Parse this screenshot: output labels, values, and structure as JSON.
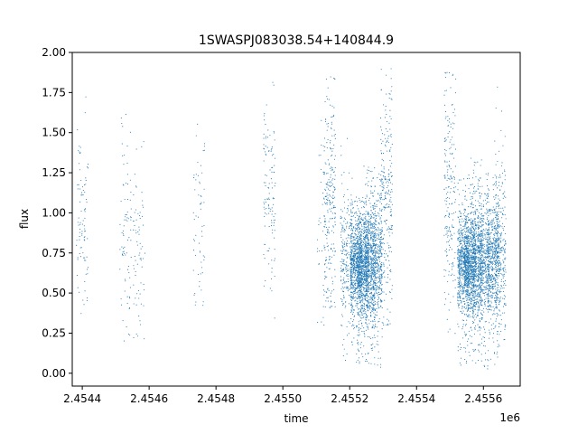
{
  "chart_data": {
    "type": "scatter",
    "title": "1SWASPJ083038.54+140844.9",
    "xlabel": "time",
    "ylabel": "flux",
    "x_offset_label": "1e6",
    "xlim": [
      2.45437,
      2.45571
    ],
    "ylim": [
      -0.08,
      2.0
    ],
    "xticks": [
      2.4544,
      2.4546,
      2.4548,
      2.455,
      2.4552,
      2.4554,
      2.4556
    ],
    "xtick_labels": [
      "2.4544",
      "2.4546",
      "2.4548",
      "2.4550",
      "2.4552",
      "2.4554",
      "2.4556"
    ],
    "yticks": [
      0.0,
      0.25,
      0.5,
      0.75,
      1.0,
      1.25,
      1.5,
      1.75,
      2.0
    ],
    "ytick_labels": [
      "0.00",
      "0.25",
      "0.50",
      "0.75",
      "1.00",
      "1.25",
      "1.50",
      "1.75",
      "2.00"
    ],
    "grid": false,
    "marker_color": "#1f77b4",
    "series": [
      {
        "observing_blocks": [
          {
            "x": 2.4544,
            "y_center": 0.95,
            "y_spread": 0.28,
            "count": 90,
            "y_min": 0.35,
            "y_max": 1.75
          },
          {
            "x": 2.45453,
            "y_center": 0.85,
            "y_spread": 0.3,
            "count": 80,
            "y_min": 0.2,
            "y_max": 1.65
          },
          {
            "x": 2.45457,
            "y_center": 0.75,
            "y_spread": 0.25,
            "count": 70,
            "y_min": 0.2,
            "y_max": 1.7
          },
          {
            "x": 2.45475,
            "y_center": 0.95,
            "y_spread": 0.3,
            "count": 60,
            "y_min": 0.4,
            "y_max": 1.62
          },
          {
            "x": 2.45496,
            "y_center": 1.05,
            "y_spread": 0.3,
            "count": 120,
            "y_min": 0.3,
            "y_max": 1.9
          },
          {
            "x": 2.45512,
            "y_center": 0.9,
            "y_spread": 0.35,
            "count": 60,
            "y_min": 0.3,
            "y_max": 1.6
          },
          {
            "x": 2.45514,
            "y_center": 1.0,
            "y_spread": 0.35,
            "count": 220,
            "y_min": 0.4,
            "y_max": 1.9
          },
          {
            "x": 2.45519,
            "y_center": 0.7,
            "y_spread": 0.2,
            "count": 250,
            "y_min": 0.05,
            "y_max": 1.5
          },
          {
            "x": 2.45522,
            "y_center": 0.68,
            "y_spread": 0.15,
            "count": 700,
            "y_min": 0.05,
            "y_max": 1.1
          },
          {
            "x": 2.45524,
            "y_center": 0.68,
            "y_spread": 0.15,
            "count": 700,
            "y_min": 0.05,
            "y_max": 1.1
          },
          {
            "x": 2.45526,
            "y_center": 0.7,
            "y_spread": 0.2,
            "count": 500,
            "y_min": 0.03,
            "y_max": 1.3
          },
          {
            "x": 2.45528,
            "y_center": 0.7,
            "y_spread": 0.18,
            "count": 500,
            "y_min": 0.03,
            "y_max": 1.25
          },
          {
            "x": 2.45531,
            "y_center": 1.05,
            "y_spread": 0.35,
            "count": 250,
            "y_min": 0.3,
            "y_max": 1.9
          },
          {
            "x": 2.4555,
            "y_center": 1.1,
            "y_spread": 0.38,
            "count": 200,
            "y_min": 0.05,
            "y_max": 1.9
          },
          {
            "x": 2.45554,
            "y_center": 0.68,
            "y_spread": 0.15,
            "count": 600,
            "y_min": 0.05,
            "y_max": 1.25
          },
          {
            "x": 2.45556,
            "y_center": 0.68,
            "y_spread": 0.15,
            "count": 700,
            "y_min": 0.05,
            "y_max": 1.25
          },
          {
            "x": 2.45558,
            "y_center": 0.7,
            "y_spread": 0.18,
            "count": 500,
            "y_min": 0.05,
            "y_max": 1.35
          },
          {
            "x": 2.4556,
            "y_center": 0.7,
            "y_spread": 0.18,
            "count": 500,
            "y_min": 0.02,
            "y_max": 1.25
          },
          {
            "x": 2.45563,
            "y_center": 0.7,
            "y_spread": 0.18,
            "count": 500,
            "y_min": 0.05,
            "y_max": 1.25
          },
          {
            "x": 2.45565,
            "y_center": 0.75,
            "y_spread": 0.25,
            "count": 300,
            "y_min": 0.1,
            "y_max": 1.85
          }
        ]
      }
    ]
  }
}
